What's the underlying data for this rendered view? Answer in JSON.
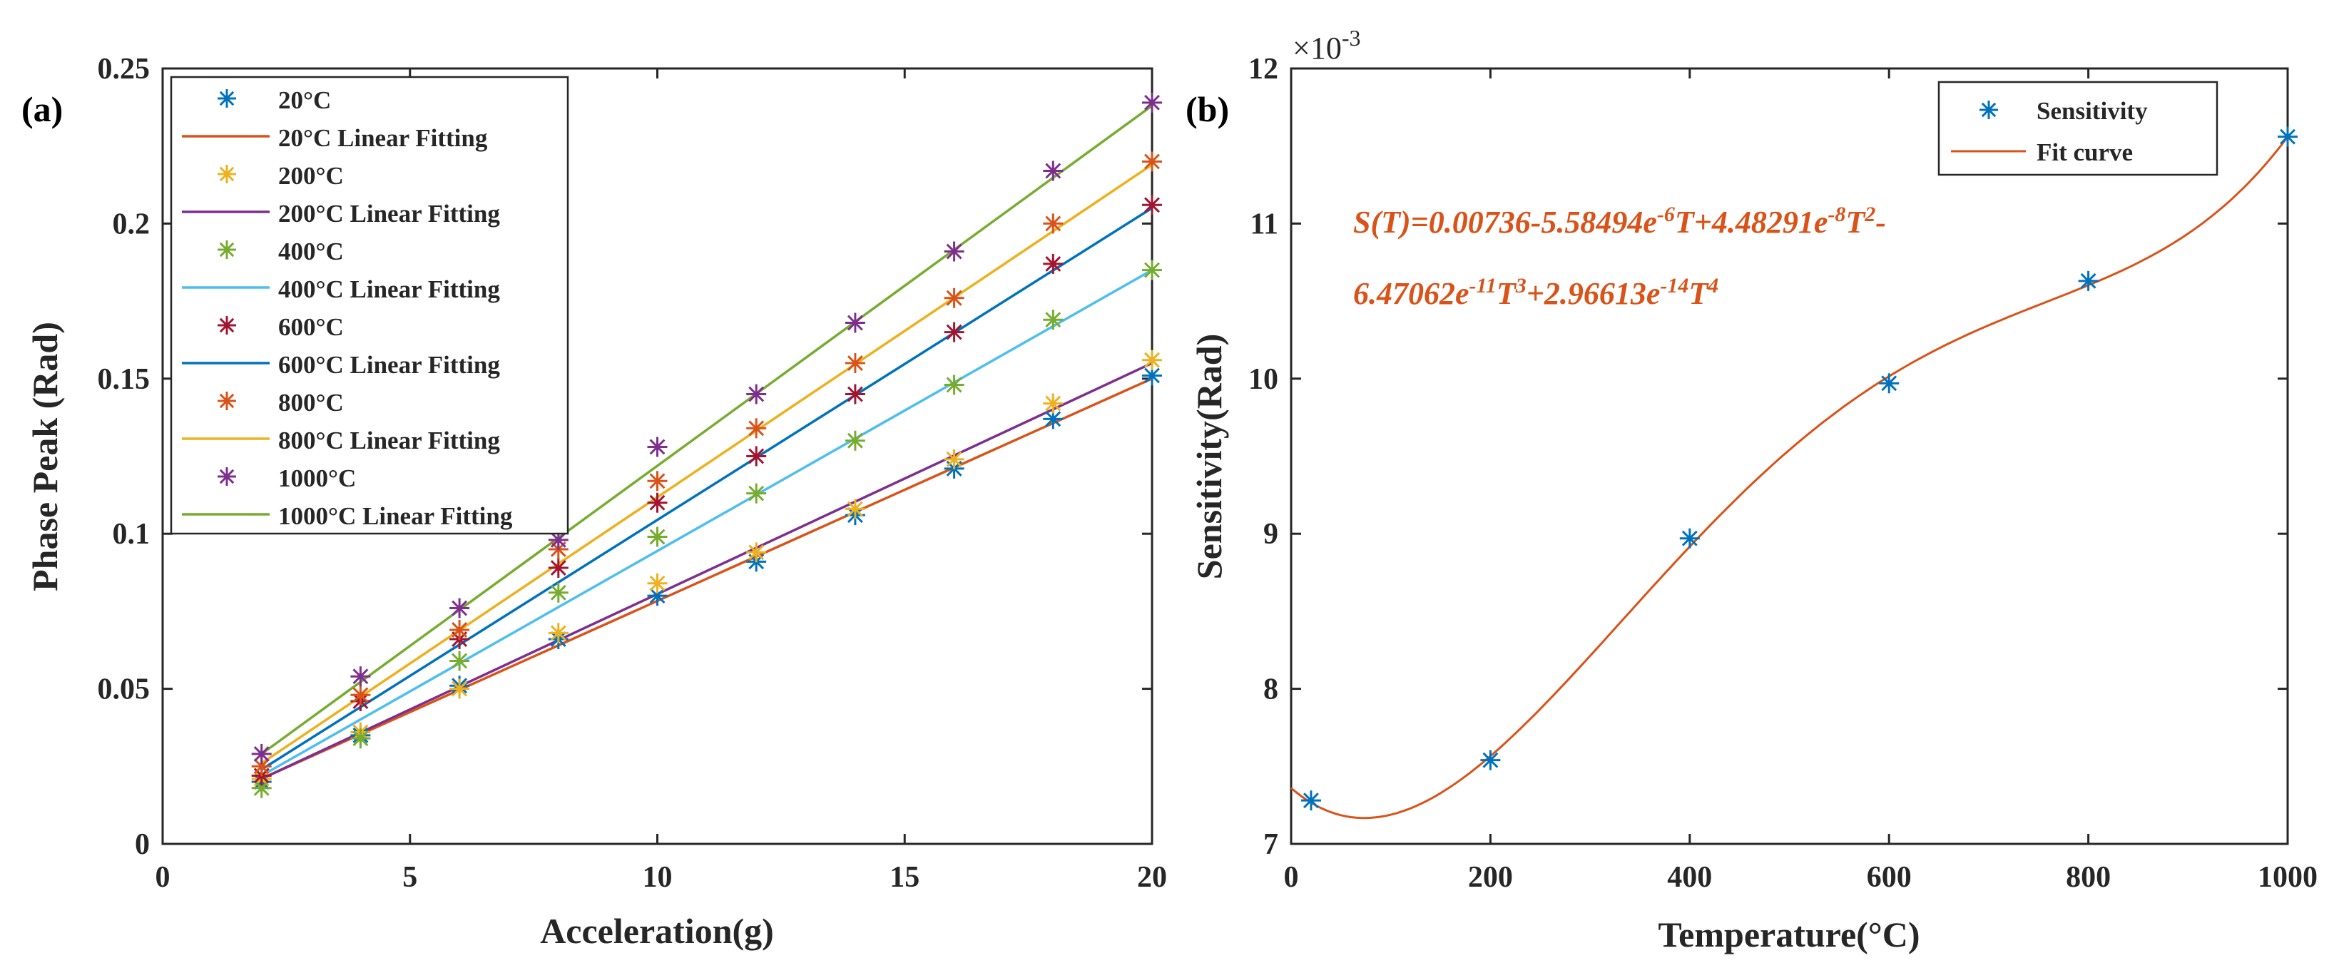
{
  "chart_data": [
    {
      "type": "scatter",
      "panel_label": "(a)",
      "xlabel": "Acceleration(g)",
      "ylabel": "Phase Peak (Rad)",
      "xlim": [
        0,
        20
      ],
      "ylim": [
        0,
        0.25
      ],
      "xticks": [
        0,
        5,
        10,
        15,
        20
      ],
      "xtick_labels": [
        "0",
        "5",
        "10",
        "15",
        "20"
      ],
      "yticks": [
        0,
        0.05,
        0.1,
        0.15,
        0.2,
        0.25
      ],
      "ytick_labels": [
        "0",
        "0.05",
        "0.1",
        "0.15",
        "0.2",
        "0.25"
      ],
      "legend_position": "top-left",
      "x": [
        2,
        4,
        6,
        8,
        10,
        12,
        14,
        16,
        18,
        20
      ],
      "series": [
        {
          "name": "20°C",
          "fit_name": "20°C Linear Fitting",
          "color": "#0072BD",
          "fit_color": "#D95319",
          "values": [
            0.02,
            0.035,
            0.051,
            0.066,
            0.08,
            0.091,
            0.106,
            0.121,
            0.137,
            0.151
          ],
          "fit": [
            0.021,
            0.15
          ]
        },
        {
          "name": "200°C",
          "fit_name": "200°C Linear Fitting",
          "color": "#EDB120",
          "fit_color": "#7E2F8E",
          "values": [
            0.021,
            0.036,
            0.05,
            0.068,
            0.084,
            0.094,
            0.108,
            0.124,
            0.142,
            0.156
          ],
          "fit": [
            0.021,
            0.155
          ]
        },
        {
          "name": "400°C",
          "fit_name": "400°C Linear Fitting",
          "color": "#77AC30",
          "fit_color": "#4DBEEE",
          "values": [
            0.018,
            0.034,
            0.059,
            0.081,
            0.099,
            0.113,
            0.13,
            0.148,
            0.169,
            0.185
          ],
          "fit": [
            0.022,
            0.185
          ]
        },
        {
          "name": "600°C",
          "fit_name": "600°C Linear Fitting",
          "color": "#A2142F",
          "fit_color": "#0072BD",
          "values": [
            0.022,
            0.046,
            0.066,
            0.089,
            0.11,
            0.125,
            0.145,
            0.165,
            0.187,
            0.206
          ],
          "fit": [
            0.024,
            0.205
          ]
        },
        {
          "name": "800°C",
          "fit_name": "800°C Linear Fitting",
          "color": "#D95319",
          "fit_color": "#EDB120",
          "values": [
            0.025,
            0.048,
            0.069,
            0.095,
            0.117,
            0.134,
            0.155,
            0.176,
            0.2,
            0.22
          ],
          "fit": [
            0.026,
            0.219
          ]
        },
        {
          "name": "1000°C",
          "fit_name": "1000°C Linear Fitting",
          "color": "#7E2F8E",
          "fit_color": "#77AC30",
          "values": [
            0.029,
            0.054,
            0.076,
            0.098,
            0.128,
            0.145,
            0.168,
            0.191,
            0.217,
            0.239
          ],
          "fit": [
            0.029,
            0.238
          ]
        }
      ]
    },
    {
      "type": "scatter",
      "panel_label": "(b)",
      "xlabel": "Temperature(°C)",
      "ylabel": "Sensitivity(Rad)",
      "y_multiplier": "×10",
      "y_multiplier_exp": "-3",
      "xlim": [
        0,
        1000
      ],
      "ylim": [
        7,
        12
      ],
      "xticks": [
        0,
        200,
        400,
        600,
        800,
        1000
      ],
      "xtick_labels": [
        "0",
        "200",
        "400",
        "600",
        "800",
        "1000"
      ],
      "yticks": [
        7,
        8,
        9,
        10,
        11,
        12
      ],
      "ytick_labels": [
        "7",
        "8",
        "9",
        "10",
        "11",
        "12"
      ],
      "legend_position": "top-right",
      "series": [
        {
          "name": "Sensitivity",
          "color": "#0072BD",
          "x": [
            20,
            200,
            400,
            600,
            800,
            1000
          ],
          "y": [
            7.28,
            7.54,
            8.97,
            9.97,
            10.63,
            11.56
          ]
        }
      ],
      "fit_curve": {
        "name": "Fit curve",
        "color": "#D95319",
        "coefficients": [
          0.00736,
          -5.58494e-06,
          4.48291e-08,
          -6.47062e-11,
          2.96613e-14
        ],
        "scale": 1000
      },
      "equation": {
        "color": "#D95319",
        "line1": [
          {
            "t": "S(T)=0.00736-5.58494e"
          },
          {
            "t": "-6",
            "sup": true
          },
          {
            "t": "T+4.48291e"
          },
          {
            "t": "-8",
            "sup": true
          },
          {
            "t": "T"
          },
          {
            "t": "2",
            "sup": true
          },
          {
            "t": "-"
          }
        ],
        "line2": [
          {
            "t": "6.47062e"
          },
          {
            "t": "-11",
            "sup": true
          },
          {
            "t": "T"
          },
          {
            "t": "3",
            "sup": true
          },
          {
            "t": "+2.96613e"
          },
          {
            "t": "-14",
            "sup": true
          },
          {
            "t": "T"
          },
          {
            "t": "4",
            "sup": true
          }
        ]
      }
    }
  ]
}
